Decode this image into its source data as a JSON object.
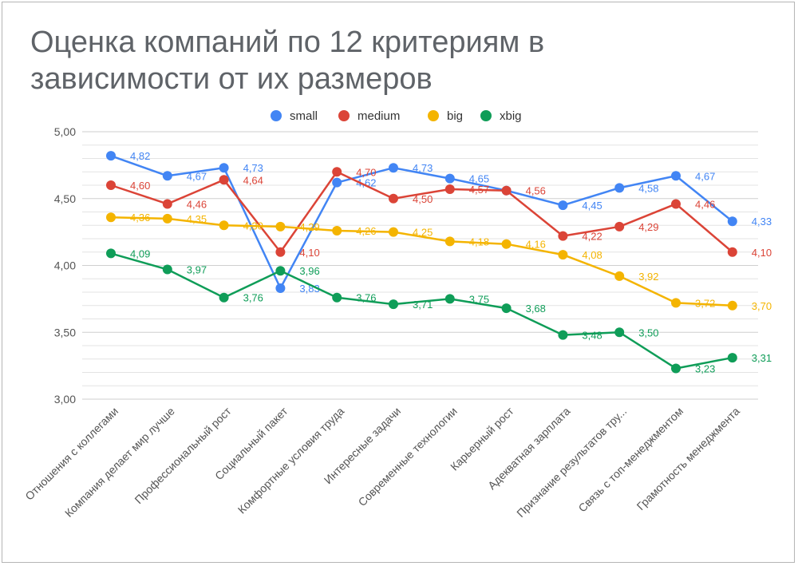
{
  "chart_data": {
    "type": "line",
    "title": "Оценка компаний по 12 критериям в зависимости от их размеров",
    "xlabel": "",
    "ylabel": "",
    "ylim": [
      3.0,
      5.0
    ],
    "yticks": [
      "3,00",
      "3,50",
      "4,00",
      "4,50",
      "5,00"
    ],
    "legend_position": "top",
    "categories": [
      "Отношения с коллегами",
      "Компания делает мир лучше",
      "Профессиональный рост",
      "Социальный пакет",
      "Комфортные условия труда",
      "Интересные задачи",
      "Современные технологии",
      "Карьерный рост",
      "Адекватная зарплата",
      "Признание результатов тру...",
      "Связь с топ-менеджментом",
      "Грамотность менеджмента"
    ],
    "series": [
      {
        "name": "small",
        "color": "#4285f4",
        "values": [
          4.82,
          4.67,
          4.73,
          3.83,
          4.62,
          4.73,
          4.65,
          4.56,
          4.45,
          4.58,
          4.67,
          4.33
        ],
        "labels": [
          "4,82",
          "4,67",
          "4,73",
          "3,83",
          "4,62",
          "4,73",
          "4,65",
          "",
          "4,45",
          "4,58",
          "4,67",
          "4,33"
        ]
      },
      {
        "name": "medium",
        "color": "#db4437",
        "values": [
          4.6,
          4.46,
          4.64,
          4.1,
          4.7,
          4.5,
          4.57,
          4.56,
          4.22,
          4.29,
          4.46,
          4.1
        ],
        "labels": [
          "4,60",
          "4,46",
          "4,64",
          "4,10",
          "4,70",
          "4,50",
          "4,57",
          "4,56",
          "4,22",
          "4,29",
          "4,46",
          "4,10"
        ]
      },
      {
        "name": "big",
        "color": "#f4b400",
        "values": [
          4.36,
          4.35,
          4.3,
          4.29,
          4.26,
          4.25,
          4.18,
          4.16,
          4.08,
          3.92,
          3.72,
          3.7
        ],
        "labels": [
          "4,36",
          "4,35",
          "4,30",
          "4,29",
          "4,26",
          "4,25",
          "4,18",
          "4,16",
          "4,08",
          "3,92",
          "3,72",
          "3,70"
        ]
      },
      {
        "name": "xbig",
        "color": "#0f9d58",
        "values": [
          4.09,
          3.97,
          3.76,
          3.96,
          3.76,
          3.71,
          3.75,
          3.68,
          3.48,
          3.5,
          3.23,
          3.31
        ],
        "labels": [
          "4,09",
          "3,97",
          "3,76",
          "3,96",
          "3,76",
          "3,71",
          "3,75",
          "3,68",
          "3,48",
          "3,50",
          "3,23",
          "3,31"
        ]
      }
    ]
  }
}
